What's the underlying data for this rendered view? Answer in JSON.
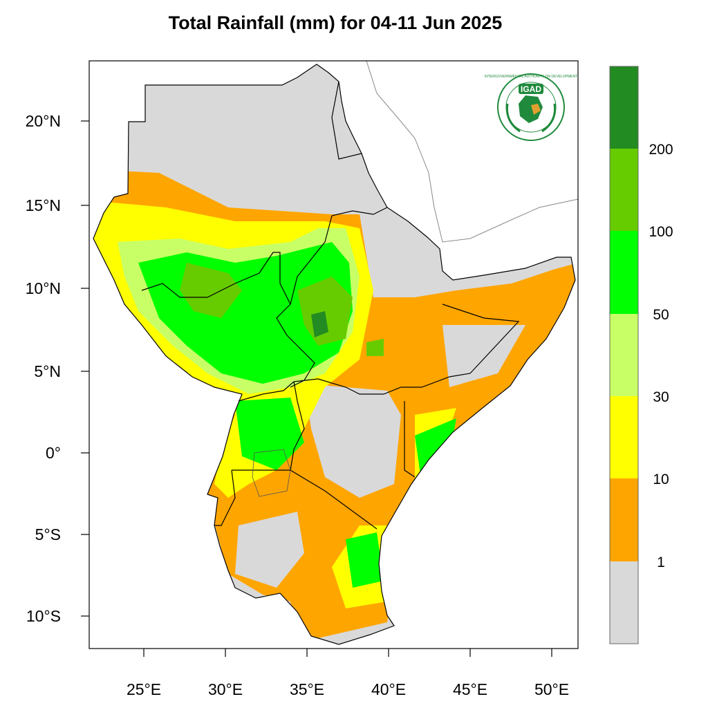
{
  "title": "Total Rainfall (mm) for 04-11 Jun 2025",
  "logo": {
    "text": "IGAD",
    "ring_text": "INTERGOVERNMENTAL AUTHORITY ON DEVELOPMENT",
    "color": "#1f8a3c"
  },
  "axes": {
    "lon_ticks": [
      "25°E",
      "30°E",
      "35°E",
      "40°E",
      "45°E",
      "50°E"
    ],
    "lat_ticks": [
      "20°N",
      "15°N",
      "10°N",
      "5°N",
      "0°",
      "5°S",
      "10°S"
    ]
  },
  "colorbar": {
    "labels": [
      "200",
      "100",
      "50",
      "30",
      "10",
      "1"
    ],
    "colors": [
      "#228b22",
      "#66cc00",
      "#00ff00",
      "#c8ff66",
      "#ffff00",
      "#ffa500",
      "#d9d9d9"
    ]
  },
  "chart_data": {
    "type": "heatmap",
    "title": "Total Rainfall (mm) for 04-11 Jun 2025",
    "xlabel": "",
    "ylabel": "",
    "xlim": [
      21.8,
      51.7
    ],
    "ylim": [
      -11.7,
      23.5
    ],
    "levels_mm": [
      1,
      10,
      30,
      50,
      100,
      200
    ],
    "colors": [
      "#d9d9d9",
      "#ffa500",
      "#ffff00",
      "#c8ff66",
      "#00ff00",
      "#66cc00",
      "#228b22"
    ]
  }
}
